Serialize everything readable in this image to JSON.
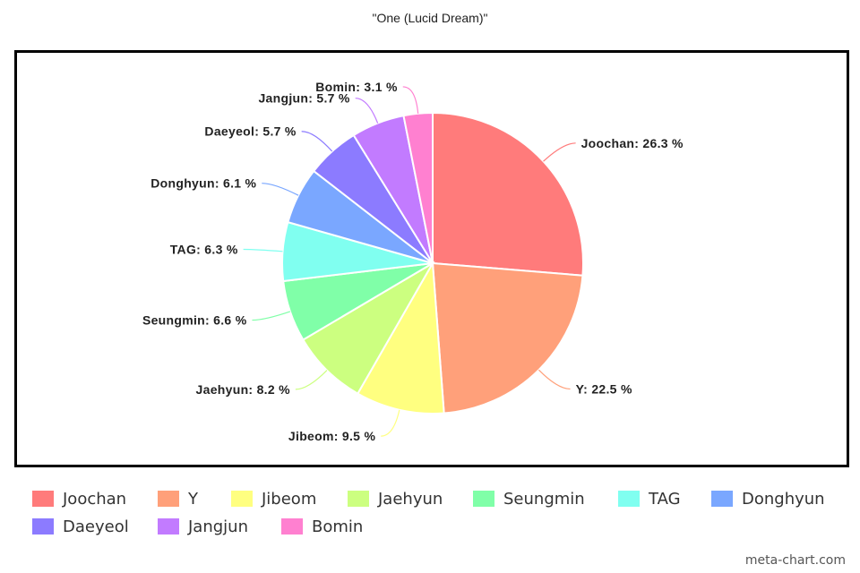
{
  "title": "\"One (Lucid Dream)\"",
  "watermark": "meta-chart.com",
  "chart_data": {
    "type": "pie",
    "title": "\"One (Lucid Dream)\"",
    "legend_position": "bottom",
    "slices": [
      {
        "name": "Joochan",
        "label": "Joochan: 26.3 %",
        "value": 26.3,
        "color": "#ff7b7b"
      },
      {
        "name": "Y",
        "label": "Y: 22.5 %",
        "value": 22.5,
        "color": "#ffa07a"
      },
      {
        "name": "Jibeom",
        "label": "Jibeom: 9.5 %",
        "value": 9.5,
        "color": "#ffff80"
      },
      {
        "name": "Jaehyun",
        "label": "Jaehyun: 8.2 %",
        "value": 8.2,
        "color": "#ccff80"
      },
      {
        "name": "Seungmin",
        "label": "Seungmin: 6.6 %",
        "value": 6.6,
        "color": "#80ffa8"
      },
      {
        "name": "TAG",
        "label": "TAG: 6.3 %",
        "value": 6.3,
        "color": "#80fff0"
      },
      {
        "name": "Donghyun",
        "label": "Donghyun: 6.1 %",
        "value": 6.1,
        "color": "#7aa7ff"
      },
      {
        "name": "Daeyeol",
        "label": "Daeyeol: 5.7 %",
        "value": 5.7,
        "color": "#8c7bff"
      },
      {
        "name": "Jangjun",
        "label": "Jangjun: 5.7 %",
        "value": 5.7,
        "color": "#c27bff"
      },
      {
        "name": "Bomin",
        "label": "Bomin: 3.1 %",
        "value": 3.1,
        "color": "#ff80d0"
      }
    ]
  }
}
